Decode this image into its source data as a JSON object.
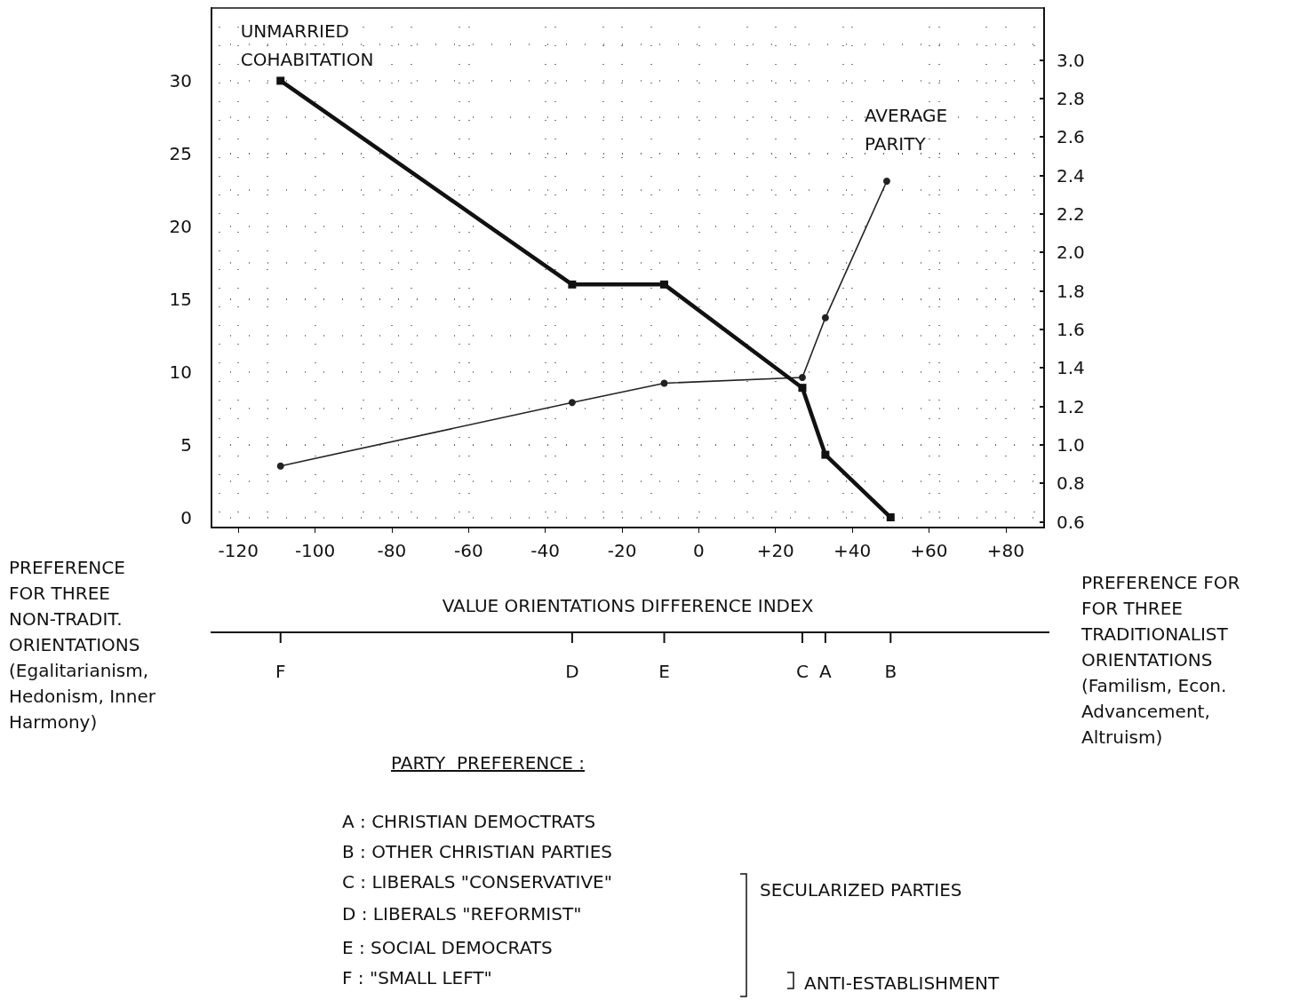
{
  "chart_data": {
    "type": "line",
    "xlabel": "VALUE ORIENTATIONS DIFFERENCE INDEX",
    "xlim": [
      -127,
      90
    ],
    "xticks": [
      -120,
      -100,
      -80,
      -60,
      -40,
      -20,
      0,
      {
        "value": 20,
        "label": "+20"
      },
      {
        "value": 40,
        "label": "+40"
      },
      {
        "value": 60,
        "label": "+60"
      },
      {
        "value": 80,
        "label": "+80"
      }
    ],
    "ylim": [
      -0.7,
      35
    ],
    "yticks": [
      0,
      5,
      10,
      15,
      20,
      25,
      30
    ],
    "y2lim": [
      0.57,
      3.27
    ],
    "y2ticks": [
      0.6,
      0.8,
      {
        "value": 1,
        "label": "1.0"
      },
      1.2,
      1.4,
      1.6,
      1.8,
      {
        "value": 2,
        "label": "2.0"
      },
      2.2,
      2.4,
      2.6,
      2.8,
      {
        "value": 3,
        "label": "3.0"
      }
    ],
    "grid": true,
    "series": [
      {
        "name": "UNMARRIED COHABITATION",
        "color": "#111111",
        "marker": "square",
        "axis": "y",
        "x": [
          -109,
          -33,
          -9,
          27,
          33,
          50
        ],
        "values": [
          30,
          16,
          16,
          8.9,
          4.3,
          0
        ]
      },
      {
        "name": "AVERAGE PARITY",
        "color": "#222222",
        "marker": "circle",
        "axis": "y2",
        "x": [
          -109,
          -33,
          -9,
          27,
          33,
          49
        ],
        "values": [
          0.89,
          1.22,
          1.32,
          1.35,
          1.66,
          2.37
        ]
      }
    ],
    "annotations": [
      "PREFERENCE\nFOR THREE\nNON-TRADIT.\nORIENTATIONS\n(Egalitarianism,\nHedonism, Inner\nHarmony)",
      "PREFERENCE FOR\nFOR THREE\nTRADITIONALIST\nORIENTATIONS\n(Familism, Econ.\nAdvancement,\nAltruism)",
      "PARTY  PREFERENCE :",
      "A : CHRISTIAN DEMOCTRATS",
      "B : OTHER CHRISTIAN PARTIES",
      "C : LIBERALS \"CONSERVATIVE\"",
      "D : LIBERALS \"REFORMIST\"",
      "E : SOCIAL DEMOCRATS",
      "F : \"SMALL LEFT\"",
      "SECULARIZED PARTIES",
      "ANTI-ESTABLISHMENT",
      {
        "text": "F",
        "x": -109
      },
      {
        "text": "D",
        "x": -33
      },
      {
        "text": "E",
        "x": -9
      },
      {
        "text": "C",
        "x": 27
      },
      {
        "text": "A",
        "x": 33
      },
      {
        "text": "B",
        "x": 50
      }
    ]
  }
}
